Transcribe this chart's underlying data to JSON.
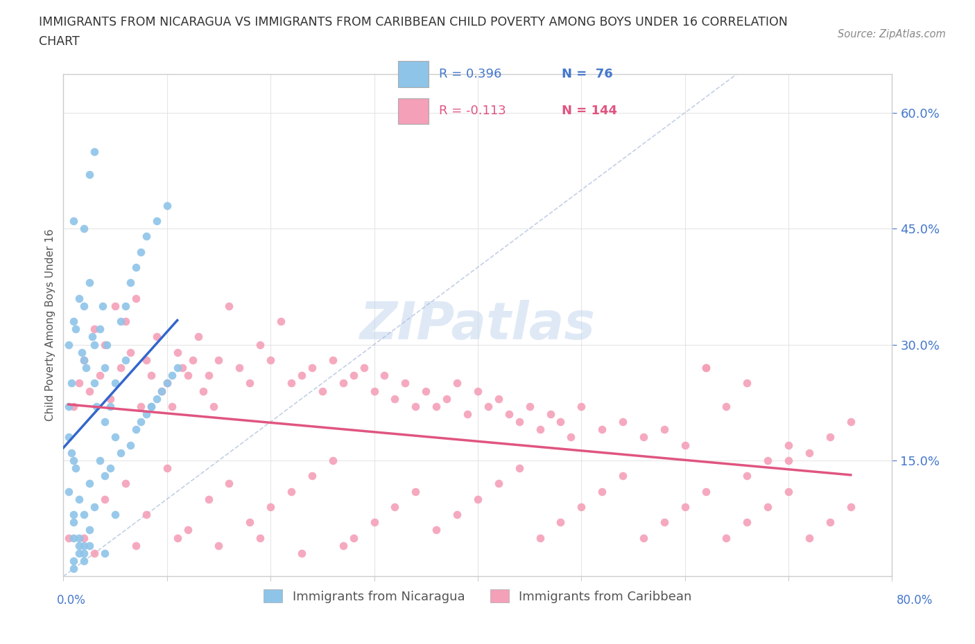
{
  "title_line1": "IMMIGRANTS FROM NICARAGUA VS IMMIGRANTS FROM CARIBBEAN CHILD POVERTY AMONG BOYS UNDER 16 CORRELATION",
  "title_line2": "CHART",
  "source": "Source: ZipAtlas.com",
  "ylabel": "Child Poverty Among Boys Under 16",
  "ytick_labels": [
    "15.0%",
    "30.0%",
    "45.0%",
    "60.0%"
  ],
  "ytick_values": [
    0.15,
    0.3,
    0.45,
    0.6
  ],
  "xlim": [
    0.0,
    0.8
  ],
  "ylim": [
    0.0,
    0.65
  ],
  "color_blue": "#8ec4e8",
  "color_pink": "#f4a0b8",
  "color_blue_text": "#4477cc",
  "color_pink_text": "#e05580",
  "watermark": "ZIPatlas",
  "nicaragua_x": [
    0.005,
    0.01,
    0.01,
    0.01,
    0.01,
    0.01,
    0.01,
    0.01,
    0.015,
    0.015,
    0.015,
    0.015,
    0.02,
    0.02,
    0.02,
    0.02,
    0.02,
    0.02,
    0.025,
    0.025,
    0.025,
    0.025,
    0.03,
    0.03,
    0.03,
    0.03,
    0.035,
    0.035,
    0.04,
    0.04,
    0.04,
    0.04,
    0.045,
    0.045,
    0.05,
    0.05,
    0.05,
    0.055,
    0.055,
    0.06,
    0.06,
    0.065,
    0.065,
    0.07,
    0.07,
    0.075,
    0.075,
    0.08,
    0.08,
    0.085,
    0.085,
    0.09,
    0.09,
    0.095,
    0.1,
    0.1,
    0.105,
    0.11,
    0.01,
    0.015,
    0.02,
    0.025,
    0.005,
    0.005,
    0.005,
    0.008,
    0.008,
    0.012,
    0.012,
    0.018,
    0.022,
    0.028,
    0.032,
    0.038,
    0.042
  ],
  "nicaragua_y": [
    0.22,
    0.46,
    0.33,
    0.15,
    0.08,
    0.05,
    0.02,
    0.01,
    0.36,
    0.1,
    0.05,
    0.03,
    0.45,
    0.35,
    0.28,
    0.08,
    0.04,
    0.02,
    0.52,
    0.38,
    0.12,
    0.06,
    0.55,
    0.3,
    0.25,
    0.09,
    0.32,
    0.15,
    0.27,
    0.2,
    0.13,
    0.03,
    0.22,
    0.14,
    0.25,
    0.18,
    0.08,
    0.33,
    0.16,
    0.28,
    0.35,
    0.38,
    0.17,
    0.4,
    0.19,
    0.42,
    0.2,
    0.44,
    0.21,
    0.22,
    0.22,
    0.46,
    0.23,
    0.24,
    0.48,
    0.25,
    0.26,
    0.27,
    0.07,
    0.04,
    0.03,
    0.04,
    0.3,
    0.18,
    0.11,
    0.25,
    0.16,
    0.32,
    0.14,
    0.29,
    0.27,
    0.31,
    0.22,
    0.35,
    0.3
  ],
  "caribbean_x": [
    0.005,
    0.01,
    0.015,
    0.02,
    0.025,
    0.03,
    0.035,
    0.04,
    0.045,
    0.05,
    0.055,
    0.06,
    0.065,
    0.07,
    0.075,
    0.08,
    0.085,
    0.09,
    0.095,
    0.1,
    0.105,
    0.11,
    0.115,
    0.12,
    0.125,
    0.13,
    0.135,
    0.14,
    0.145,
    0.15,
    0.16,
    0.17,
    0.18,
    0.19,
    0.2,
    0.21,
    0.22,
    0.23,
    0.24,
    0.25,
    0.26,
    0.27,
    0.28,
    0.29,
    0.3,
    0.31,
    0.32,
    0.33,
    0.34,
    0.35,
    0.36,
    0.37,
    0.38,
    0.39,
    0.4,
    0.41,
    0.42,
    0.43,
    0.44,
    0.45,
    0.46,
    0.47,
    0.48,
    0.49,
    0.5,
    0.52,
    0.54,
    0.56,
    0.58,
    0.6,
    0.62,
    0.64,
    0.66,
    0.68,
    0.7,
    0.72,
    0.74,
    0.76,
    0.02,
    0.04,
    0.06,
    0.08,
    0.1,
    0.12,
    0.14,
    0.16,
    0.18,
    0.2,
    0.22,
    0.24,
    0.26,
    0.28,
    0.3,
    0.32,
    0.34,
    0.36,
    0.38,
    0.4,
    0.42,
    0.44,
    0.46,
    0.48,
    0.5,
    0.52,
    0.54,
    0.56,
    0.58,
    0.6,
    0.62,
    0.64,
    0.66,
    0.68,
    0.7,
    0.72,
    0.74,
    0.76,
    0.03,
    0.07,
    0.11,
    0.15,
    0.19,
    0.23,
    0.27,
    0.62,
    0.66,
    0.7
  ],
  "caribbean_y": [
    0.05,
    0.22,
    0.25,
    0.28,
    0.24,
    0.32,
    0.26,
    0.3,
    0.23,
    0.35,
    0.27,
    0.33,
    0.29,
    0.36,
    0.22,
    0.28,
    0.26,
    0.31,
    0.24,
    0.25,
    0.22,
    0.29,
    0.27,
    0.26,
    0.28,
    0.31,
    0.24,
    0.26,
    0.22,
    0.28,
    0.35,
    0.27,
    0.25,
    0.3,
    0.28,
    0.33,
    0.25,
    0.26,
    0.27,
    0.24,
    0.28,
    0.25,
    0.26,
    0.27,
    0.24,
    0.26,
    0.23,
    0.25,
    0.22,
    0.24,
    0.22,
    0.23,
    0.25,
    0.21,
    0.24,
    0.22,
    0.23,
    0.21,
    0.2,
    0.22,
    0.19,
    0.21,
    0.2,
    0.18,
    0.22,
    0.19,
    0.2,
    0.18,
    0.19,
    0.17,
    0.27,
    0.22,
    0.25,
    0.15,
    0.17,
    0.16,
    0.18,
    0.2,
    0.05,
    0.1,
    0.12,
    0.08,
    0.14,
    0.06,
    0.1,
    0.12,
    0.07,
    0.09,
    0.11,
    0.13,
    0.15,
    0.05,
    0.07,
    0.09,
    0.11,
    0.06,
    0.08,
    0.1,
    0.12,
    0.14,
    0.05,
    0.07,
    0.09,
    0.11,
    0.13,
    0.05,
    0.07,
    0.09,
    0.11,
    0.05,
    0.07,
    0.09,
    0.11,
    0.05,
    0.07,
    0.09,
    0.03,
    0.04,
    0.05,
    0.04,
    0.05,
    0.03,
    0.04,
    0.27,
    0.13,
    0.15
  ]
}
